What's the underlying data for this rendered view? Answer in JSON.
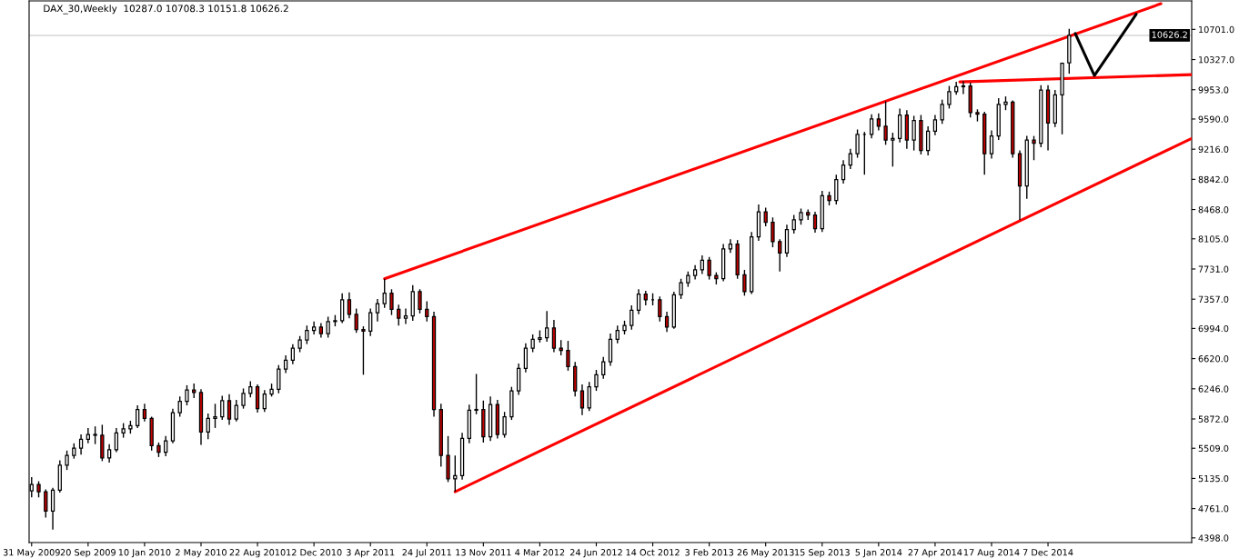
{
  "chart_data": {
    "type": "candlestick",
    "title": "DAX_30,Weekly  10287.0 10708.3 10151.8 10626.2",
    "x": [
      "2009-05-31",
      "2009-06-14",
      "2009-06-28",
      "2009-07-12",
      "2009-07-26",
      "2009-08-09",
      "2009-08-23",
      "2009-09-06",
      "2009-09-20",
      "2009-10-04",
      "2009-10-18",
      "2009-11-01",
      "2009-11-15",
      "2009-11-29",
      "2009-12-13",
      "2009-12-27",
      "2010-01-10",
      "2010-01-24",
      "2010-02-07",
      "2010-02-21",
      "2010-03-07",
      "2010-03-21",
      "2010-04-04",
      "2010-04-18",
      "2010-05-02",
      "2010-05-16",
      "2010-05-30",
      "2010-06-13",
      "2010-06-27",
      "2010-07-11",
      "2010-07-25",
      "2010-08-08",
      "2010-08-22",
      "2010-09-05",
      "2010-09-19",
      "2010-10-03",
      "2010-10-17",
      "2010-10-31",
      "2010-11-14",
      "2010-11-28",
      "2010-12-12",
      "2010-12-26",
      "2011-01-09",
      "2011-01-23",
      "2011-02-06",
      "2011-02-20",
      "2011-03-06",
      "2011-03-20",
      "2011-04-03",
      "2011-04-17",
      "2011-05-01",
      "2011-05-15",
      "2011-05-29",
      "2011-06-12",
      "2011-06-26",
      "2011-07-10",
      "2011-07-24",
      "2011-08-07",
      "2011-08-21",
      "2011-09-04",
      "2011-09-18",
      "2011-10-02",
      "2011-10-16",
      "2011-10-30",
      "2011-11-13",
      "2011-11-27",
      "2011-12-11",
      "2011-12-25",
      "2012-01-08",
      "2012-01-22",
      "2012-02-05",
      "2012-02-19",
      "2012-03-04",
      "2012-03-18",
      "2012-04-01",
      "2012-04-15",
      "2012-04-29",
      "2012-05-13",
      "2012-05-27",
      "2012-06-10",
      "2012-06-24",
      "2012-07-08",
      "2012-07-22",
      "2012-08-05",
      "2012-08-19",
      "2012-09-02",
      "2012-09-16",
      "2012-09-30",
      "2012-10-14",
      "2012-10-28",
      "2012-11-11",
      "2012-11-25",
      "2012-12-09",
      "2012-12-23",
      "2013-01-06",
      "2013-01-20",
      "2013-02-03",
      "2013-02-17",
      "2013-03-03",
      "2013-03-17",
      "2013-03-31",
      "2013-04-14",
      "2013-04-28",
      "2013-05-12",
      "2013-05-26",
      "2013-06-09",
      "2013-06-23",
      "2013-07-07",
      "2013-07-21",
      "2013-08-04",
      "2013-08-18",
      "2013-09-01",
      "2013-09-15",
      "2013-09-29",
      "2013-10-13",
      "2013-10-27",
      "2013-11-10",
      "2013-11-24",
      "2013-12-08",
      "2013-12-22",
      "2014-01-05",
      "2014-01-19",
      "2014-02-02",
      "2014-02-16",
      "2014-03-02",
      "2014-03-16",
      "2014-03-30",
      "2014-04-13",
      "2014-04-27",
      "2014-05-11",
      "2014-05-25",
      "2014-06-08",
      "2014-06-22",
      "2014-07-06",
      "2014-07-20",
      "2014-08-03",
      "2014-08-17",
      "2014-08-31",
      "2014-09-14",
      "2014-09-28",
      "2014-10-12",
      "2014-10-26",
      "2014-11-09",
      "2014-11-23",
      "2014-12-07",
      "2014-12-21",
      "2015-01-04",
      "2015-01-18"
    ],
    "ohlc": [
      [
        4980,
        5150,
        4900,
        5060
      ],
      [
        5060,
        5100,
        4900,
        4970
      ],
      [
        4970,
        5000,
        4650,
        4730
      ],
      [
        4730,
        5020,
        4500,
        4990
      ],
      [
        4990,
        5360,
        4960,
        5300
      ],
      [
        5300,
        5480,
        5240,
        5420
      ],
      [
        5420,
        5570,
        5380,
        5510
      ],
      [
        5510,
        5680,
        5430,
        5620
      ],
      [
        5620,
        5760,
        5570,
        5680
      ],
      [
        5680,
        5780,
        5560,
        5670
      ],
      [
        5670,
        5800,
        5350,
        5390
      ],
      [
        5390,
        5560,
        5330,
        5490
      ],
      [
        5490,
        5760,
        5460,
        5700
      ],
      [
        5700,
        5820,
        5640,
        5750
      ],
      [
        5750,
        5850,
        5690,
        5790
      ],
      [
        5790,
        6040,
        5760,
        5990
      ],
      [
        5990,
        6060,
        5840,
        5880
      ],
      [
        5880,
        5900,
        5480,
        5540
      ],
      [
        5540,
        5580,
        5400,
        5460
      ],
      [
        5460,
        5660,
        5410,
        5600
      ],
      [
        5600,
        6000,
        5570,
        5950
      ],
      [
        5950,
        6150,
        5900,
        6090
      ],
      [
        6090,
        6290,
        6040,
        6230
      ],
      [
        6230,
        6310,
        6130,
        6200
      ],
      [
        6200,
        6240,
        5550,
        5710
      ],
      [
        5710,
        5940,
        5620,
        5880
      ],
      [
        5880,
        6060,
        5760,
        5900
      ],
      [
        5900,
        6160,
        5860,
        6100
      ],
      [
        6100,
        6180,
        5800,
        5870
      ],
      [
        5870,
        6110,
        5840,
        6040
      ],
      [
        6040,
        6250,
        6000,
        6190
      ],
      [
        6190,
        6340,
        6140,
        6270
      ],
      [
        6270,
        6300,
        5950,
        6000
      ],
      [
        6000,
        6230,
        5960,
        6180
      ],
      [
        6180,
        6310,
        6150,
        6240
      ],
      [
        6240,
        6540,
        6190,
        6490
      ],
      [
        6490,
        6660,
        6440,
        6600
      ],
      [
        6600,
        6800,
        6550,
        6750
      ],
      [
        6750,
        6900,
        6700,
        6850
      ],
      [
        6850,
        7030,
        6800,
        6970
      ],
      [
        6970,
        7080,
        6920,
        7010
      ],
      [
        7010,
        7060,
        6880,
        6930
      ],
      [
        6930,
        7140,
        6880,
        7080
      ],
      [
        7080,
        7160,
        7020,
        7090
      ],
      [
        7090,
        7430,
        7060,
        7350
      ],
      [
        7350,
        7440,
        7120,
        7170
      ],
      [
        7170,
        7240,
        6940,
        6980
      ],
      [
        6980,
        7020,
        6420,
        6960
      ],
      [
        6960,
        7240,
        6900,
        7190
      ],
      [
        7190,
        7360,
        7080,
        7300
      ],
      [
        7300,
        7610,
        7250,
        7430
      ],
      [
        7430,
        7480,
        7160,
        7230
      ],
      [
        7230,
        7290,
        7030,
        7120
      ],
      [
        7120,
        7240,
        7050,
        7150
      ],
      [
        7150,
        7530,
        7090,
        7450
      ],
      [
        7450,
        7480,
        7180,
        7230
      ],
      [
        7230,
        7330,
        7080,
        7140
      ],
      [
        7140,
        7200,
        5900,
        5990
      ],
      [
        5990,
        6060,
        5280,
        5420
      ],
      [
        5420,
        5660,
        5090,
        5130
      ],
      [
        5130,
        5420,
        4970,
        5170
      ],
      [
        5170,
        5700,
        5120,
        5630
      ],
      [
        5630,
        6050,
        5570,
        5980
      ],
      [
        5980,
        6430,
        5930,
        5990
      ],
      [
        5990,
        6100,
        5580,
        5650
      ],
      [
        5650,
        6150,
        5600,
        6050
      ],
      [
        6050,
        6110,
        5630,
        5680
      ],
      [
        5680,
        5960,
        5640,
        5900
      ],
      [
        5900,
        6270,
        5860,
        6220
      ],
      [
        6220,
        6560,
        6170,
        6500
      ],
      [
        6500,
        6810,
        6450,
        6750
      ],
      [
        6750,
        6920,
        6700,
        6860
      ],
      [
        6860,
        6970,
        6820,
        6880
      ],
      [
        6880,
        7210,
        6830,
        7000
      ],
      [
        7000,
        7100,
        6700,
        6750
      ],
      [
        6750,
        6850,
        6660,
        6720
      ],
      [
        6720,
        6840,
        6470,
        6520
      ],
      [
        6520,
        6580,
        6150,
        6220
      ],
      [
        6220,
        6300,
        5920,
        6010
      ],
      [
        6010,
        6330,
        5970,
        6270
      ],
      [
        6270,
        6480,
        6220,
        6420
      ],
      [
        6420,
        6640,
        6370,
        6580
      ],
      [
        6580,
        6930,
        6530,
        6860
      ],
      [
        6860,
        7030,
        6810,
        6970
      ],
      [
        6970,
        7090,
        6920,
        7030
      ],
      [
        7030,
        7280,
        6980,
        7220
      ],
      [
        7220,
        7480,
        7170,
        7420
      ],
      [
        7420,
        7460,
        7280,
        7350
      ],
      [
        7350,
        7430,
        7280,
        7350
      ],
      [
        7350,
        7390,
        7080,
        7140
      ],
      [
        7140,
        7200,
        6950,
        7010
      ],
      [
        7010,
        7450,
        6990,
        7410
      ],
      [
        7410,
        7610,
        7360,
        7560
      ],
      [
        7560,
        7700,
        7510,
        7650
      ],
      [
        7650,
        7780,
        7600,
        7720
      ],
      [
        7720,
        7900,
        7670,
        7840
      ],
      [
        7840,
        7880,
        7600,
        7650
      ],
      [
        7650,
        7690,
        7540,
        7610
      ],
      [
        7610,
        8040,
        7580,
        7980
      ],
      [
        7980,
        8100,
        7930,
        8040
      ],
      [
        8040,
        8090,
        7610,
        7660
      ],
      [
        7660,
        7720,
        7400,
        7450
      ],
      [
        7450,
        8190,
        7420,
        8130
      ],
      [
        8130,
        8530,
        8080,
        8440
      ],
      [
        8440,
        8490,
        8260,
        8310
      ],
      [
        8310,
        8370,
        8000,
        8070
      ],
      [
        8070,
        8100,
        7700,
        7930
      ],
      [
        7930,
        8280,
        7880,
        8220
      ],
      [
        8220,
        8400,
        8170,
        8340
      ],
      [
        8340,
        8480,
        8280,
        8430
      ],
      [
        8430,
        8470,
        8340,
        8400
      ],
      [
        8400,
        8440,
        8180,
        8230
      ],
      [
        8230,
        8700,
        8190,
        8640
      ],
      [
        8640,
        8690,
        8520,
        8580
      ],
      [
        8580,
        8900,
        8530,
        8840
      ],
      [
        8840,
        9080,
        8790,
        9020
      ],
      [
        9020,
        9220,
        8970,
        9160
      ],
      [
        9160,
        9460,
        9110,
        9400
      ],
      [
        9400,
        9430,
        8900,
        9400
      ],
      [
        9400,
        9650,
        9350,
        9590
      ],
      [
        9590,
        9660,
        9450,
        9500
      ],
      [
        9500,
        9810,
        9270,
        9330
      ],
      [
        9330,
        9420,
        9000,
        9350
      ],
      [
        9350,
        9720,
        9300,
        9640
      ],
      [
        9640,
        9700,
        9220,
        9330
      ],
      [
        9330,
        9630,
        9200,
        9570
      ],
      [
        9570,
        9640,
        9150,
        9200
      ],
      [
        9200,
        9500,
        9140,
        9440
      ],
      [
        9440,
        9640,
        9390,
        9580
      ],
      [
        9580,
        9830,
        9530,
        9770
      ],
      [
        9770,
        10000,
        9720,
        9930
      ],
      [
        9930,
        10050,
        9890,
        9990
      ],
      [
        9990,
        10060,
        9900,
        10000
      ],
      [
        10000,
        10040,
        9610,
        9670
      ],
      [
        9670,
        9710,
        9560,
        9650
      ],
      [
        9650,
        9680,
        8900,
        9160
      ],
      [
        9160,
        9450,
        9100,
        9380
      ],
      [
        9380,
        9850,
        9330,
        9770
      ],
      [
        9770,
        9870,
        9700,
        9800
      ],
      [
        9800,
        9820,
        9110,
        9160
      ],
      [
        9160,
        9200,
        8340,
        8760
      ],
      [
        8760,
        9380,
        8600,
        9330
      ],
      [
        9330,
        9380,
        9080,
        9290
      ],
      [
        9290,
        10010,
        9240,
        9950
      ],
      [
        9950,
        10010,
        9200,
        9540
      ],
      [
        9540,
        9950,
        9490,
        9890
      ],
      [
        9890,
        10290,
        9400,
        10280
      ],
      [
        10287.0,
        10708.3,
        10151.8,
        10626.2
      ]
    ],
    "series": [
      {
        "type": "line",
        "color": "#ff0000",
        "x": [
          "2011-05-01",
          "2015-07-19"
        ],
        "values": [
          7610,
          11020
        ]
      },
      {
        "type": "line",
        "color": "#ff0000",
        "x": [
          "2011-09-18",
          "2015-09-18"
        ],
        "values": [
          4970,
          9350
        ]
      },
      {
        "type": "line",
        "color": "#ff0000",
        "x": [
          "2014-06-15",
          "2015-09-18"
        ],
        "values": [
          10050,
          10140
        ]
      },
      {
        "type": "line",
        "color": "#000000",
        "x": [
          "2015-01-30",
          "2015-03-09",
          "2015-05-31"
        ],
        "values": [
          10650,
          10130,
          10890
        ]
      }
    ],
    "ref_lines": [
      {
        "axis": "y",
        "value": 10626.2,
        "label": "10626.2",
        "color": "#c0c0c0"
      }
    ],
    "xlim": [
      "2009-05-26",
      "2015-09-18"
    ],
    "xticks": [
      {
        "value": "2009-05-31",
        "label": "31 May 2009"
      },
      {
        "value": "2009-09-20",
        "label": "20 Sep 2009"
      },
      {
        "value": "2010-01-10",
        "label": "10 Jan 2010"
      },
      {
        "value": "2010-05-02",
        "label": "2 May 2010"
      },
      {
        "value": "2010-08-22",
        "label": "22 Aug 2010"
      },
      {
        "value": "2010-12-12",
        "label": "12 Dec 2010"
      },
      {
        "value": "2011-04-03",
        "label": "3 Apr 2011"
      },
      {
        "value": "2011-07-24",
        "label": "24 Jul 2011"
      },
      {
        "value": "2011-11-13",
        "label": "13 Nov 2011"
      },
      {
        "value": "2012-03-04",
        "label": "4 Mar 2012"
      },
      {
        "value": "2012-06-24",
        "label": "24 Jun 2012"
      },
      {
        "value": "2012-10-14",
        "label": "14 Oct 2012"
      },
      {
        "value": "2013-02-03",
        "label": "3 Feb 2013"
      },
      {
        "value": "2013-05-26",
        "label": "26 May 2013"
      },
      {
        "value": "2013-09-15",
        "label": "15 Sep 2013"
      },
      {
        "value": "2014-01-05",
        "label": "5 Jan 2014"
      },
      {
        "value": "2014-04-27",
        "label": "27 Apr 2014"
      },
      {
        "value": "2014-08-17",
        "label": "17 Aug 2014"
      },
      {
        "value": "2014-12-07",
        "label": "7 Dec 2014"
      }
    ],
    "ylim": [
      4340,
      11054
    ],
    "yticks": [
      {
        "value": 4398,
        "label": "4398.0"
      },
      {
        "value": 4761,
        "label": "4761.0"
      },
      {
        "value": 5135,
        "label": "5135.0"
      },
      {
        "value": 5509,
        "label": "5509.0"
      },
      {
        "value": 5872,
        "label": "5872.0"
      },
      {
        "value": 6246,
        "label": "6246.0"
      },
      {
        "value": 6620,
        "label": "6620.0"
      },
      {
        "value": 6994,
        "label": "6994.0"
      },
      {
        "value": 7357,
        "label": "7357.0"
      },
      {
        "value": 7731,
        "label": "7731.0"
      },
      {
        "value": 8105,
        "label": "8105.0"
      },
      {
        "value": 8468,
        "label": "8468.0"
      },
      {
        "value": 8842,
        "label": "8842.0"
      },
      {
        "value": 9216,
        "label": "9216.0"
      },
      {
        "value": 9590,
        "label": "9590.0"
      },
      {
        "value": 9953,
        "label": "9953.0"
      },
      {
        "value": 10327,
        "label": "10327.0"
      },
      {
        "value": 10701,
        "label": "10701.0"
      }
    ],
    "grid": false
  }
}
